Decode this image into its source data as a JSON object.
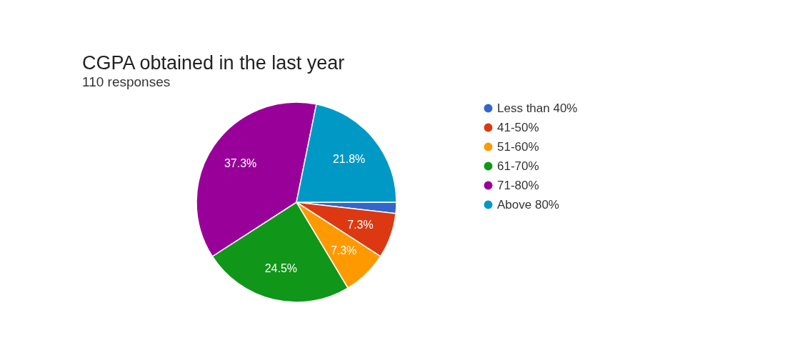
{
  "chart_data": {
    "type": "pie",
    "title": "CGPA obtained in the last year",
    "subtitle": "110 responses",
    "categories": [
      "Less than 40%",
      "41-50%",
      "51-60%",
      "61-70%",
      "71-80%",
      "Above 80%"
    ],
    "values": [
      1.8,
      7.3,
      7.3,
      24.5,
      37.3,
      21.8
    ],
    "value_labels": [
      null,
      "7.3%",
      "7.3%",
      "24.5%",
      "37.3%",
      "21.8%"
    ],
    "colors": [
      "#3366cc",
      "#dc3912",
      "#ff9900",
      "#109618",
      "#990099",
      "#0099c6"
    ],
    "legend": "right"
  }
}
